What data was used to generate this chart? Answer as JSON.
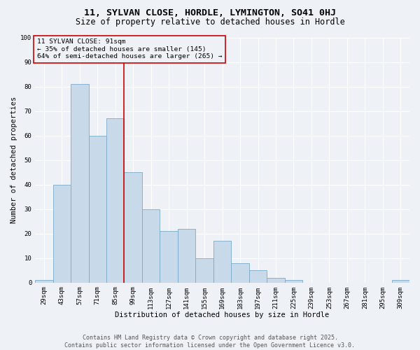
{
  "title_line1": "11, SYLVAN CLOSE, HORDLE, LYMINGTON, SO41 0HJ",
  "title_line2": "Size of property relative to detached houses in Hordle",
  "xlabel": "Distribution of detached houses by size in Hordle",
  "ylabel": "Number of detached properties",
  "bar_color": "#c8daea",
  "bar_edge_color": "#7aaac8",
  "background_color": "#eef2f7",
  "grid_color": "#ffffff",
  "annotation_box_color": "#cc0000",
  "vline_color": "#cc0000",
  "categories": [
    "29sqm",
    "43sqm",
    "57sqm",
    "71sqm",
    "85sqm",
    "99sqm",
    "113sqm",
    "127sqm",
    "141sqm",
    "155sqm",
    "169sqm",
    "183sqm",
    "197sqm",
    "211sqm",
    "225sqm",
    "239sqm",
    "253sqm",
    "267sqm",
    "281sqm",
    "295sqm",
    "309sqm"
  ],
  "values": [
    1,
    40,
    81,
    60,
    67,
    45,
    30,
    21,
    22,
    10,
    17,
    8,
    5,
    2,
    1,
    0,
    0,
    0,
    0,
    0,
    1
  ],
  "ylim": [
    0,
    100
  ],
  "yticks": [
    0,
    10,
    20,
    30,
    40,
    50,
    60,
    70,
    80,
    90,
    100
  ],
  "vline_position": 4.5,
  "annotation_text": "11 SYLVAN CLOSE: 91sqm\n← 35% of detached houses are smaller (145)\n64% of semi-detached houses are larger (265) →",
  "footer_text": "Contains HM Land Registry data © Crown copyright and database right 2025.\nContains public sector information licensed under the Open Government Licence v3.0.",
  "title_fontsize": 9.5,
  "subtitle_fontsize": 8.5,
  "axis_label_fontsize": 7.5,
  "tick_fontsize": 6.5,
  "annotation_fontsize": 6.8,
  "footer_fontsize": 6
}
